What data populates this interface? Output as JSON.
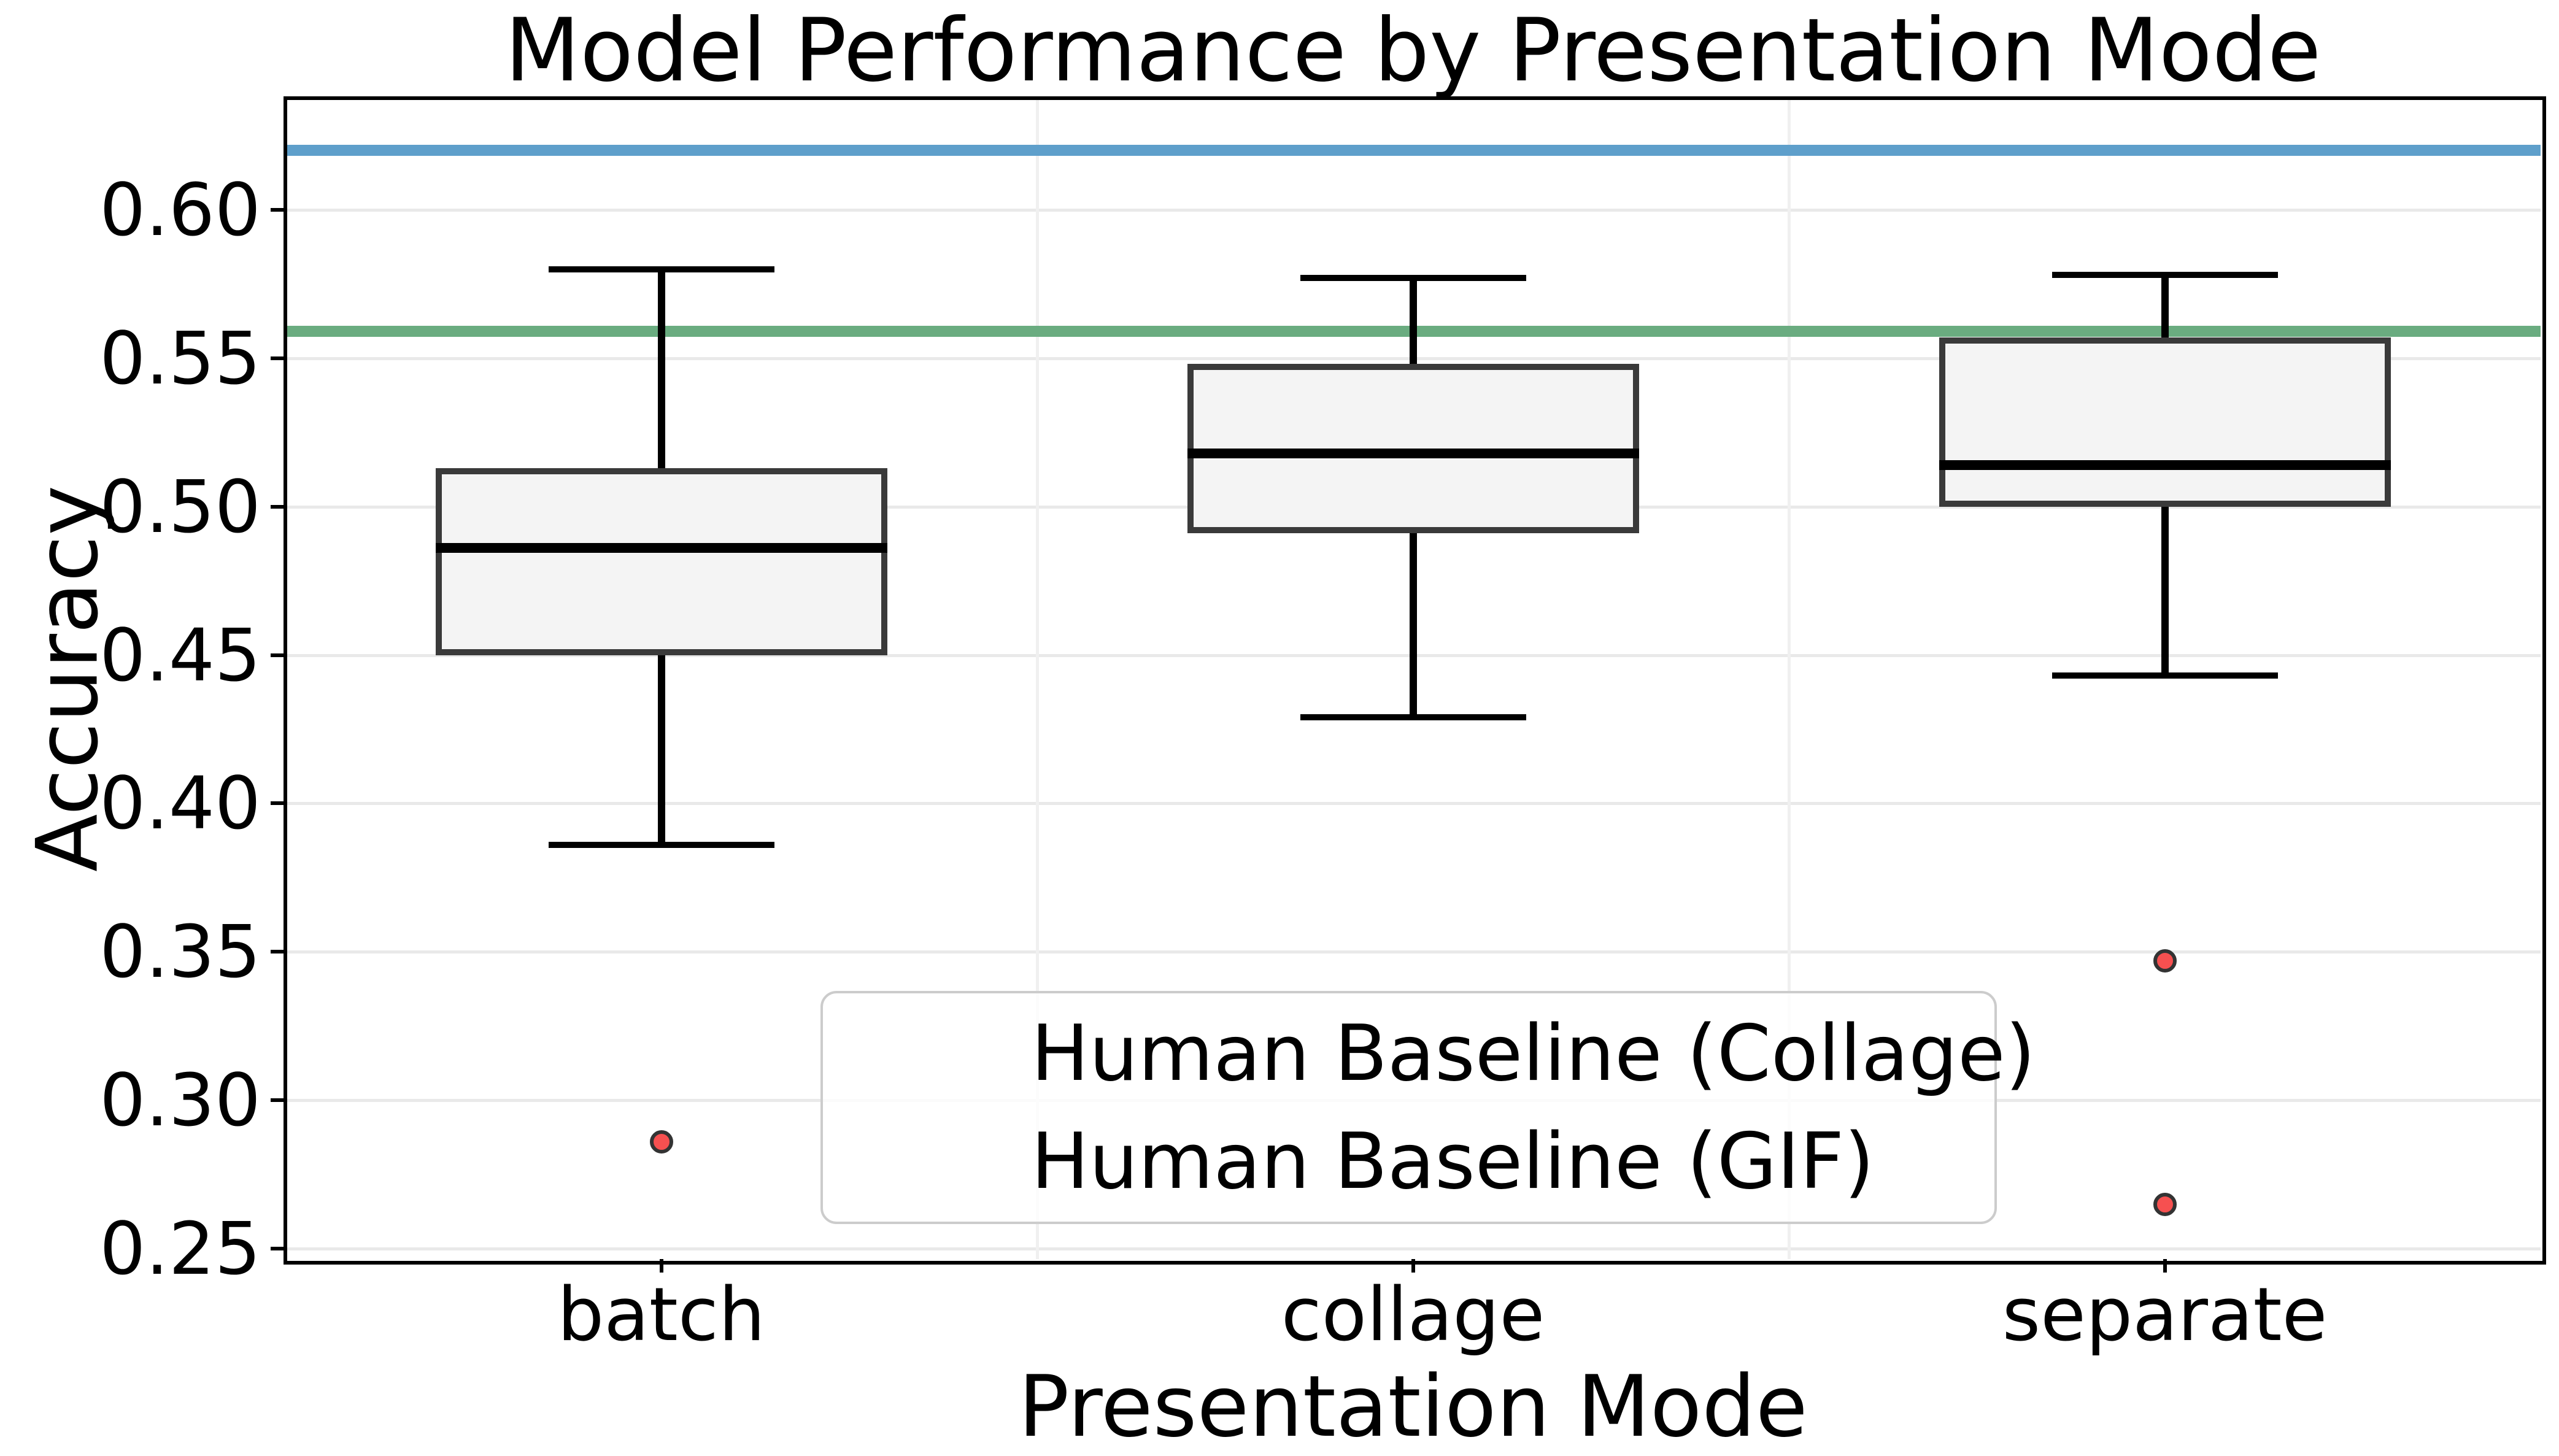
{
  "chart_data": {
    "type": "box",
    "title": "Model Performance by Presentation Mode",
    "xlabel": "Presentation Mode",
    "ylabel": "Accuracy",
    "categories": [
      "batch",
      "collage",
      "separate"
    ],
    "y_ticks": [
      "0.60",
      "0.55",
      "0.50",
      "0.45",
      "0.40",
      "0.35",
      "0.30",
      "0.25"
    ],
    "ylim": [
      0.2465,
      0.6376
    ],
    "grid": "horizontal gridlines at each y tick, faint vertical gridlines at category boundaries",
    "legend_position": "lower center-left inside plot",
    "boxes": [
      {
        "category": "batch",
        "whisker_low": 0.386,
        "q1": 0.45,
        "median": 0.486,
        "q3": 0.513,
        "whisker_high": 0.58,
        "outliers": [
          0.286
        ]
      },
      {
        "category": "collage",
        "whisker_low": 0.429,
        "q1": 0.491,
        "median": 0.518,
        "q3": 0.548,
        "whisker_high": 0.577,
        "outliers": []
      },
      {
        "category": "separate",
        "whisker_low": 0.443,
        "q1": 0.5,
        "median": 0.514,
        "q3": 0.557,
        "whisker_high": 0.578,
        "outliers": [
          0.347,
          0.265
        ]
      }
    ],
    "baselines": [
      {
        "label": "Human Baseline (Collage)",
        "value": 0.559,
        "color": "#6AAC80"
      },
      {
        "label": "Human Baseline (GIF)",
        "value": 0.62,
        "color": "#5E9FCB"
      }
    ],
    "colors": {
      "box_fill": "#F4F4F4",
      "box_edge": "#3A3A3A",
      "median": "#000000",
      "whisker": "#000000",
      "outlier_fill": "#F65050",
      "outlier_edge": "#333333",
      "gridline": "#E9E9E9",
      "gridline_vertical": "#F0F0F0",
      "axis": "#000000",
      "legend_border": "#CCCCCC"
    }
  }
}
